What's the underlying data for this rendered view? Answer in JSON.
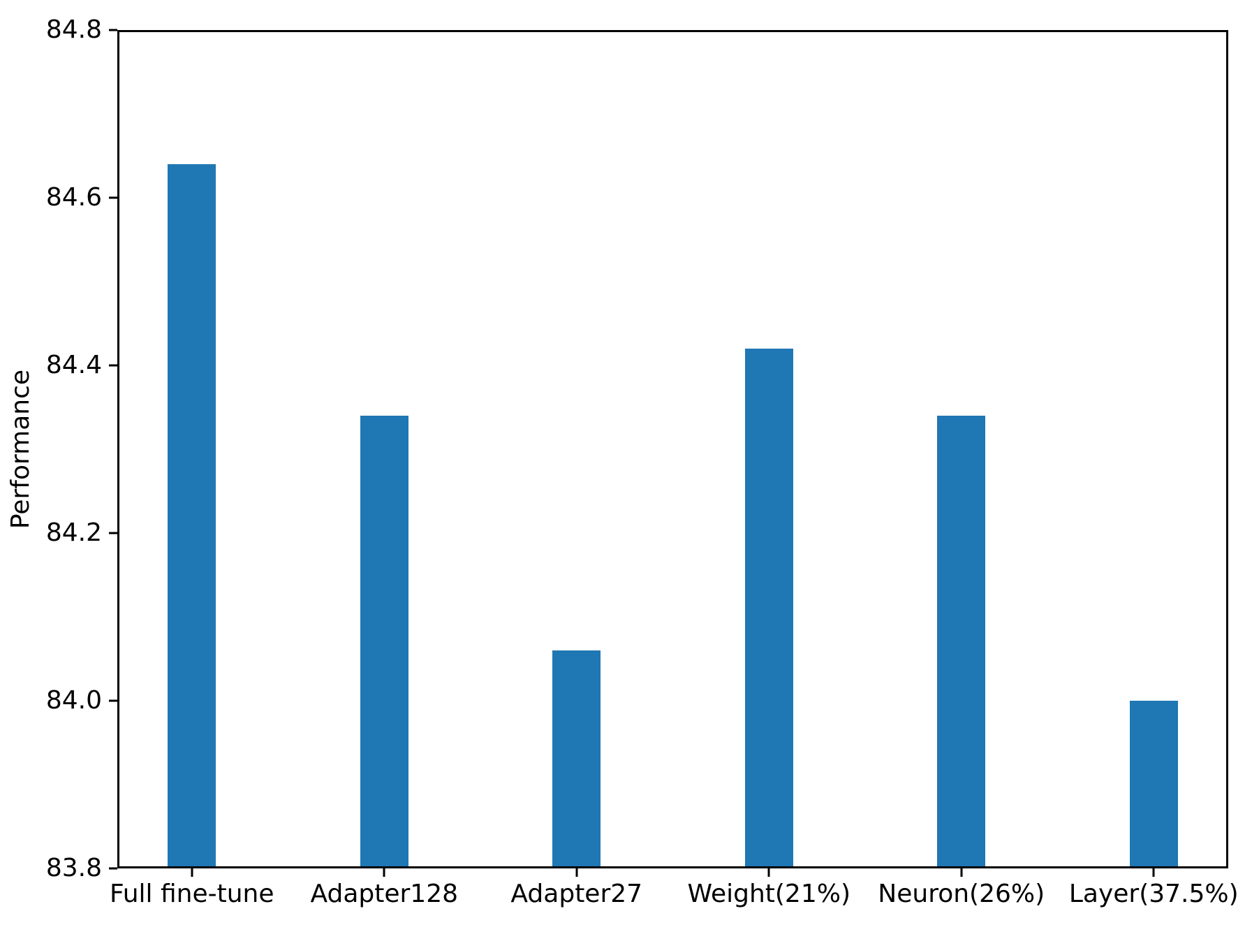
{
  "chart_data": {
    "type": "bar",
    "categories": [
      "Full fine-tune",
      "Adapter128",
      "Adapter27",
      "Weight(21%)",
      "Neuron(26%)",
      "Layer(37.5%)"
    ],
    "values": [
      84.64,
      84.34,
      84.06,
      84.42,
      84.34,
      84.0
    ],
    "title": "",
    "xlabel": "",
    "ylabel": "Performance",
    "ylim": [
      83.8,
      84.8
    ],
    "yticks": [
      83.8,
      84.0,
      84.2,
      84.4,
      84.6,
      84.8
    ],
    "ytick_labels": [
      "83.8",
      "84.0",
      "84.2",
      "84.4",
      "84.6",
      "84.8"
    ],
    "bar_color": "#1f77b4",
    "axis_color": "#000000",
    "background_color": "#ffffff",
    "grid": false,
    "legend": null
  }
}
